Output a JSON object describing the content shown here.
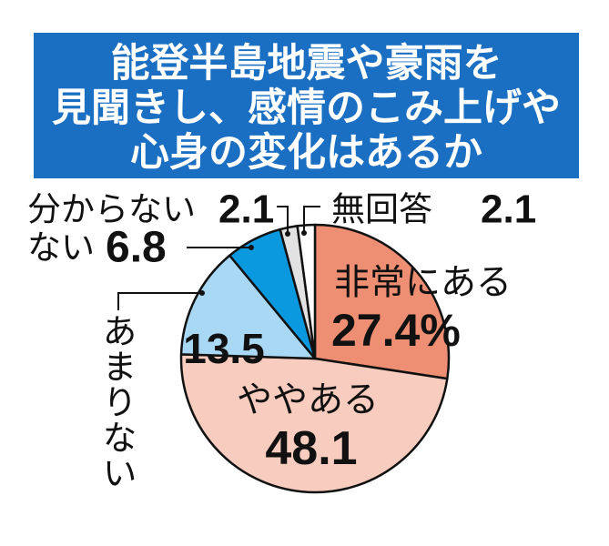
{
  "chart_data": {
    "type": "pie",
    "title_lines": [
      "能登半島地震や豪雨を",
      "見聞きし、感情のこみ上げや",
      "心身の変化はあるか"
    ],
    "categories": [
      "非常にある",
      "ややある",
      "あまりない",
      "ない",
      "分からない",
      "無回答"
    ],
    "values": [
      27.4,
      48.1,
      13.5,
      6.8,
      2.1,
      2.1
    ],
    "value_labels": [
      "27.4%",
      "48.1",
      "13.5",
      "6.8",
      "2.1",
      "2.1"
    ],
    "colors": [
      "#ee8e72",
      "#f8ccbe",
      "#a8d8f3",
      "#0a98df",
      "#e2e2e2",
      "#ffffff"
    ]
  },
  "theme": {
    "title_background": "#1b6fc2",
    "title_text": "#ffffff",
    "outline": "#111111"
  }
}
